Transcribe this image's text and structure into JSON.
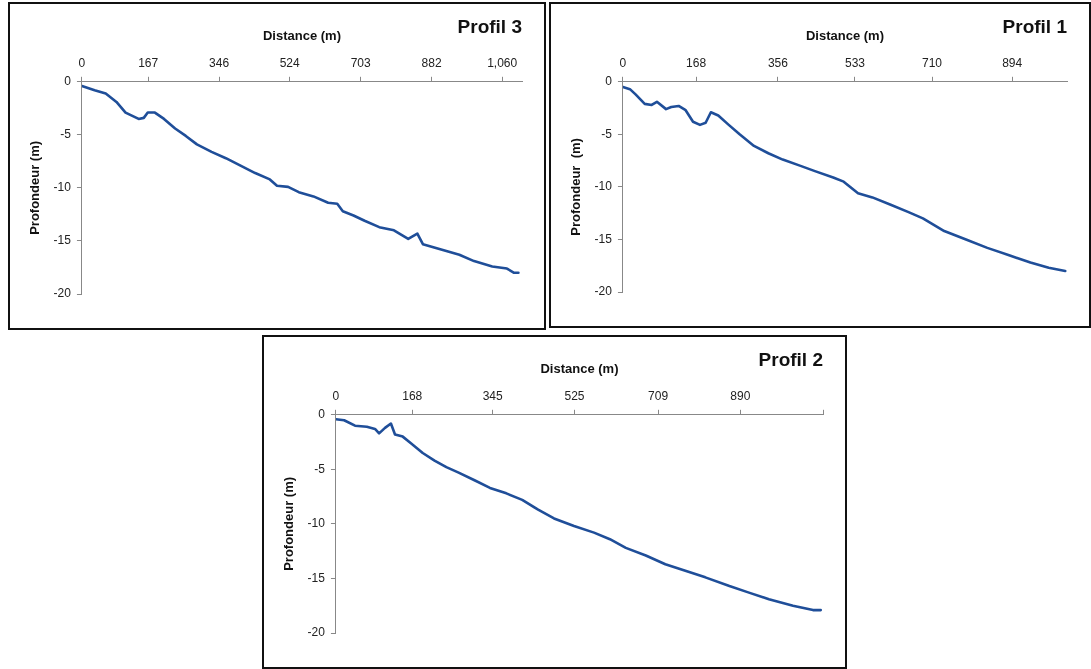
{
  "chart_data": [
    {
      "type": "line",
      "title": "Profil 3",
      "xlabel": "Distance (m)",
      "ylabel": "Profondeur (m)",
      "grid": false,
      "legend": false,
      "marker": "none",
      "xlim": [
        0,
        1110
      ],
      "xticks": [
        0,
        167,
        346,
        524,
        703,
        882,
        {
          "value": 1060,
          "label": "1,060"
        }
      ],
      "ylim": [
        -20,
        0
      ],
      "yticks": [
        -20,
        -15,
        -10,
        -5,
        0
      ],
      "series": [
        {
          "color": "#1f4e99",
          "x": [
            0,
            32,
            60,
            87,
            110,
            143,
            156,
            166,
            184,
            207,
            235,
            262,
            290,
            327,
            363,
            400,
            437,
            474,
            492,
            520,
            547,
            584,
            621,
            644,
            658,
            685,
            713,
            750,
            787,
            823,
            846,
            860,
            906,
            952,
            989,
            1035,
            1072,
            1090,
            1101
          ],
          "values": [
            -0.4,
            -0.8,
            -1.1,
            -1.9,
            -2.9,
            -3.5,
            -3.4,
            -2.9,
            -2.9,
            -3.5,
            -4.4,
            -5.1,
            -5.9,
            -6.6,
            -7.2,
            -7.9,
            -8.6,
            -9.2,
            -9.8,
            -9.9,
            -10.4,
            -10.8,
            -11.4,
            -11.5,
            -12.2,
            -12.6,
            -13.1,
            -13.7,
            -14.0,
            -14.8,
            -14.3,
            -15.3,
            -15.8,
            -16.3,
            -16.9,
            -17.4,
            -17.6,
            -18.0,
            -18.0
          ]
        }
      ]
    },
    {
      "type": "line",
      "title": "Profil 1",
      "xlabel": "Distance (m)",
      "ylabel": "Profondeur  (m)",
      "grid": false,
      "legend": false,
      "marker": "none",
      "xlim": [
        0,
        1020
      ],
      "xticks": [
        0,
        168,
        356,
        533,
        710,
        894
      ],
      "ylim": [
        -20,
        0
      ],
      "yticks": [
        -20,
        -15,
        -10,
        -5,
        0
      ],
      "series": [
        {
          "color": "#1f4e99",
          "x": [
            0,
            16,
            29,
            50,
            66,
            78,
            99,
            111,
            128,
            144,
            161,
            177,
            190,
            202,
            219,
            243,
            268,
            301,
            334,
            367,
            408,
            441,
            483,
            507,
            540,
            573,
            615,
            656,
            689,
            738,
            788,
            837,
            887,
            936,
            978,
            1016
          ],
          "values": [
            -0.5,
            -0.7,
            -1.2,
            -2.1,
            -2.2,
            -1.9,
            -2.6,
            -2.4,
            -2.3,
            -2.7,
            -3.8,
            -4.1,
            -3.9,
            -2.9,
            -3.2,
            -4.1,
            -5.0,
            -6.1,
            -6.8,
            -7.4,
            -8.0,
            -8.5,
            -9.1,
            -9.5,
            -10.6,
            -11.0,
            -11.7,
            -12.4,
            -13.0,
            -14.2,
            -15.0,
            -15.8,
            -16.5,
            -17.2,
            -17.7,
            -18.0
          ]
        }
      ]
    },
    {
      "type": "line",
      "title": "Profil 2",
      "xlabel": "Distance (m)",
      "ylabel": "Profondeur (m)",
      "grid": false,
      "legend": false,
      "marker": "none",
      "xlim": [
        0,
        1072
      ],
      "xticks": [
        0,
        168,
        345,
        525,
        709,
        890,
        {
          "value": 1072,
          "label": null
        }
      ],
      "ylim": [
        -20,
        0
      ],
      "yticks": [
        -20,
        -15,
        -10,
        -5,
        0
      ],
      "series": [
        {
          "color": "#1f4e99",
          "x": [
            0,
            18,
            42,
            68,
            86,
            95,
            108,
            121,
            130,
            147,
            165,
            191,
            217,
            243,
            270,
            305,
            339,
            375,
            410,
            445,
            480,
            524,
            568,
            603,
            638,
            682,
            725,
            769,
            813,
            866,
            909,
            953,
            1006,
            1050,
            1067
          ],
          "values": [
            -0.4,
            -0.5,
            -1.0,
            -1.1,
            -1.3,
            -1.7,
            -1.2,
            -0.8,
            -1.8,
            -2.0,
            -2.6,
            -3.5,
            -4.2,
            -4.8,
            -5.3,
            -6.0,
            -6.7,
            -7.2,
            -7.8,
            -8.7,
            -9.5,
            -10.2,
            -10.8,
            -11.4,
            -12.2,
            -12.9,
            -13.7,
            -14.3,
            -14.9,
            -15.7,
            -16.3,
            -16.9,
            -17.5,
            -17.9,
            -17.9
          ]
        }
      ]
    }
  ]
}
